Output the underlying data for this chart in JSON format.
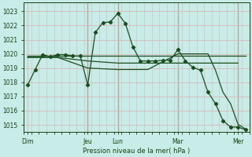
{
  "xlabel": "Pression niveau de la mer( hPa )",
  "bg_color": "#c8ece8",
  "grid_major_color": "#d8b8b8",
  "grid_minor_color": "#d8b8b8",
  "line_color": "#1a5020",
  "ylim": [
    1014.5,
    1023.6
  ],
  "yticks": [
    1015,
    1016,
    1017,
    1018,
    1019,
    1020,
    1021,
    1022,
    1023
  ],
  "xlim": [
    0,
    180
  ],
  "day_labels": [
    "Dim",
    "Jeu",
    "Lun",
    "Mar",
    "Mer"
  ],
  "day_positions": [
    3,
    51,
    75,
    123,
    171
  ],
  "vline_positions": [
    51,
    75,
    123,
    171
  ],
  "series_main": {
    "x": [
      3,
      9,
      15,
      21,
      27,
      33,
      39,
      45,
      51,
      57,
      63,
      69,
      75,
      81,
      87,
      93,
      99,
      105,
      111,
      117,
      123,
      129,
      135,
      141,
      147,
      153,
      159,
      165,
      171,
      177
    ],
    "y": [
      1017.8,
      1018.9,
      1019.95,
      1019.8,
      1019.95,
      1019.95,
      1019.85,
      1019.85,
      1017.8,
      1021.5,
      1022.2,
      1022.25,
      1022.85,
      1022.15,
      1020.5,
      1019.5,
      1019.5,
      1019.5,
      1019.55,
      1019.55,
      1020.3,
      1019.5,
      1019.05,
      1018.85,
      1017.3,
      1016.5,
      1015.3,
      1014.85,
      1014.85,
      1014.65
    ]
  },
  "series_smooth1": {
    "x": [
      3,
      27,
      51,
      75,
      99,
      123,
      147,
      171,
      177
    ],
    "y": [
      1019.85,
      1019.85,
      1019.85,
      1019.85,
      1019.85,
      1019.85,
      1019.85,
      1019.85,
      1019.85
    ]
  },
  "series_smooth2": {
    "x": [
      3,
      27,
      51,
      75,
      99,
      123,
      135,
      147,
      165,
      171
    ],
    "y": [
      1019.75,
      1019.75,
      1019.5,
      1019.35,
      1019.35,
      1019.35,
      1019.35,
      1019.35,
      1019.35,
      1019.35
    ]
  },
  "series_smooth3": {
    "x": [
      3,
      27,
      51,
      75,
      99,
      123,
      135,
      147,
      153,
      159,
      165,
      171,
      177
    ],
    "y": [
      1019.75,
      1019.75,
      1019.0,
      1018.9,
      1018.9,
      1020.0,
      1020.0,
      1020.0,
      1018.85,
      1017.3,
      1016.5,
      1015.05,
      1014.7
    ]
  }
}
